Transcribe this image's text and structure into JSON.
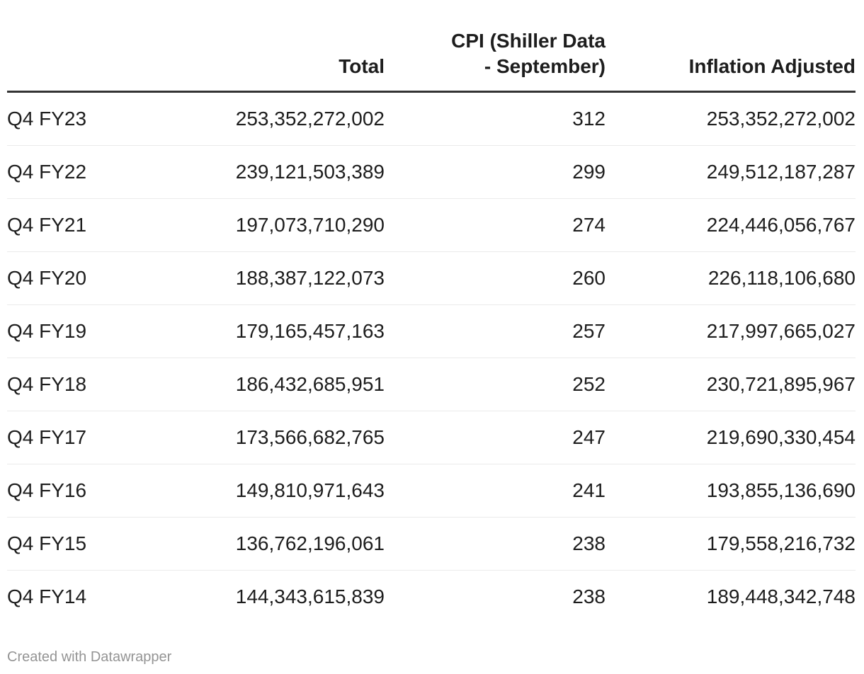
{
  "table": {
    "columns": {
      "row_label": "",
      "total": "Total",
      "cpi": "CPI (Shiller Data\n- September)",
      "inflation_adjusted": "Inflation Adjusted"
    },
    "rows": [
      {
        "label": "Q4 FY23",
        "total": "253,352,272,002",
        "cpi": "312",
        "inflation_adjusted": "253,352,272,002"
      },
      {
        "label": "Q4 FY22",
        "total": "239,121,503,389",
        "cpi": "299",
        "inflation_adjusted": "249,512,187,287"
      },
      {
        "label": "Q4 FY21",
        "total": "197,073,710,290",
        "cpi": "274",
        "inflation_adjusted": "224,446,056,767"
      },
      {
        "label": "Q4 FY20",
        "total": "188,387,122,073",
        "cpi": "260",
        "inflation_adjusted": "226,118,106,680"
      },
      {
        "label": "Q4 FY19",
        "total": "179,165,457,163",
        "cpi": "257",
        "inflation_adjusted": "217,997,665,027"
      },
      {
        "label": "Q4 FY18",
        "total": "186,432,685,951",
        "cpi": "252",
        "inflation_adjusted": "230,721,895,967"
      },
      {
        "label": "Q4 FY17",
        "total": "173,566,682,765",
        "cpi": "247",
        "inflation_adjusted": "219,690,330,454"
      },
      {
        "label": "Q4 FY16",
        "total": "149,810,971,643",
        "cpi": "241",
        "inflation_adjusted": "193,855,136,690"
      },
      {
        "label": "Q4 FY15",
        "total": "136,762,196,061",
        "cpi": "238",
        "inflation_adjusted": "179,558,216,732"
      },
      {
        "label": "Q4 FY14",
        "total": "144,343,615,839",
        "cpi": "238",
        "inflation_adjusted": "189,448,342,748"
      }
    ]
  },
  "footer": {
    "attribution": "Created with Datawrapper"
  },
  "colors": {
    "background": "#ffffff",
    "text": "#1d1d1d",
    "header_border": "#333333",
    "row_border": "#ebebeb",
    "footer_text": "#949494"
  },
  "chart_data": {
    "type": "table",
    "title": "",
    "columns": [
      "",
      "Total",
      "CPI (Shiller Data - September)",
      "Inflation Adjusted"
    ],
    "rows": [
      [
        "Q4 FY23",
        253352272002,
        312,
        253352272002
      ],
      [
        "Q4 FY22",
        239121503389,
        299,
        249512187287
      ],
      [
        "Q4 FY21",
        197073710290,
        274,
        224446056767
      ],
      [
        "Q4 FY20",
        188387122073,
        260,
        226118106680
      ],
      [
        "Q4 FY19",
        179165457163,
        257,
        217997665027
      ],
      [
        "Q4 FY18",
        186432685951,
        252,
        230721895967
      ],
      [
        "Q4 FY17",
        173566682765,
        247,
        219690330454
      ],
      [
        "Q4 FY16",
        149810971643,
        241,
        193855136690
      ],
      [
        "Q4 FY15",
        136762196061,
        238,
        179558216732
      ],
      [
        "Q4 FY14",
        144343615839,
        238,
        189448342748
      ]
    ],
    "layout_hints": {
      "numeric_columns_alignment": "right",
      "label_column_alignment": "left",
      "grid": "horizontal-row-separators",
      "header_rule": "thick-dark-line"
    }
  }
}
